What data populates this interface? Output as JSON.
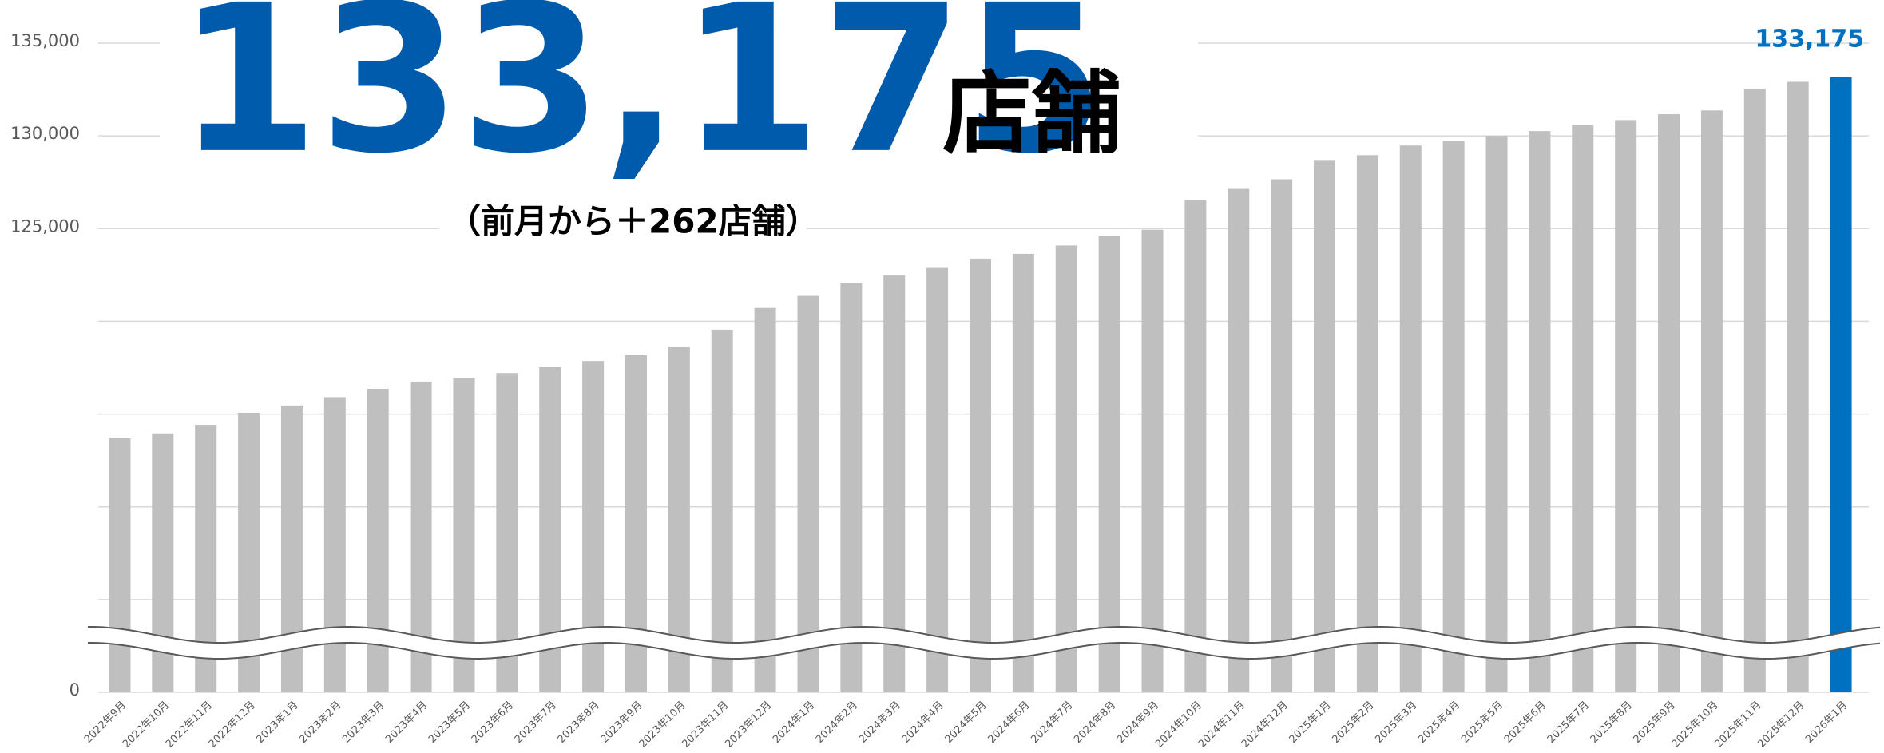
{
  "headline": {
    "value_text": "133,175",
    "unit": "店舗",
    "change": "（前月から＋262店舗）"
  },
  "chart_data": {
    "type": "bar",
    "categories": [
      "2022年9月",
      "2022年10月",
      "2022年11月",
      "2022年12月",
      "2023年1月",
      "2023年2月",
      "2023年3月",
      "2023年4月",
      "2023年5月",
      "2023年6月",
      "2023年7月",
      "2023年8月",
      "2023年9月",
      "2023年10月",
      "2023年11月",
      "2023年12月",
      "2024年1月",
      "2024年2月",
      "2024年3月",
      "2024年4月",
      "2024年5月",
      "2024年6月",
      "2024年7月",
      "2024年8月",
      "2024年9月",
      "2024年10月",
      "2024年11月",
      "2024年12月",
      "2025年1月",
      "2025年2月",
      "2025年3月",
      "2025年4月",
      "2025年5月",
      "2025年6月",
      "2025年7月",
      "2025年8月",
      "2025年9月",
      "2025年10月",
      "2025年11月",
      "2025年12月",
      "2026年1月"
    ],
    "values": [
      113700,
      113960,
      114420,
      115070,
      115460,
      115910,
      116360,
      116750,
      116950,
      117210,
      117530,
      117860,
      118180,
      118640,
      119550,
      120720,
      121370,
      122080,
      122470,
      122920,
      123380,
      123640,
      124090,
      124610,
      124940,
      126560,
      127140,
      127660,
      128700,
      128960,
      129480,
      129740,
      130000,
      130260,
      130590,
      130850,
      131170,
      131370,
      132540,
      132913,
      133175
    ],
    "color": "#bfbfbf",
    "highlight_color": "#0070c0",
    "highlight_index": 40,
    "value_labels": {
      "40": "133,175"
    },
    "ylim": [
      0,
      135000
    ],
    "axis_break": [
      0,
      100000
    ],
    "yticks": [
      0,
      {
        "value": 125000,
        "label": "125,000"
      },
      {
        "value": 130000,
        "label": "130,000"
      },
      {
        "value": 135000,
        "label": "135,000"
      }
    ],
    "gridlines": [
      105000,
      110000,
      115000,
      120000
    ],
    "grid": true
  }
}
